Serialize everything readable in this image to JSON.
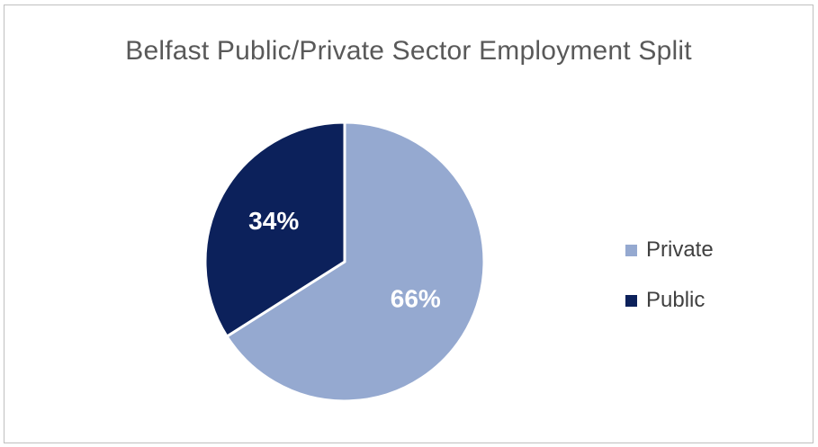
{
  "chart_data": {
    "type": "pie",
    "title": "Belfast Public/Private Sector Employment Split",
    "start_angle_deg": 0,
    "direction": "clockwise",
    "legend_position": "right",
    "slices": [
      {
        "name": "Private",
        "value": 66,
        "label": "66%",
        "color": "#95a9d0"
      },
      {
        "name": "Public",
        "value": 34,
        "label": "34%",
        "color": "#0c215b"
      }
    ]
  }
}
